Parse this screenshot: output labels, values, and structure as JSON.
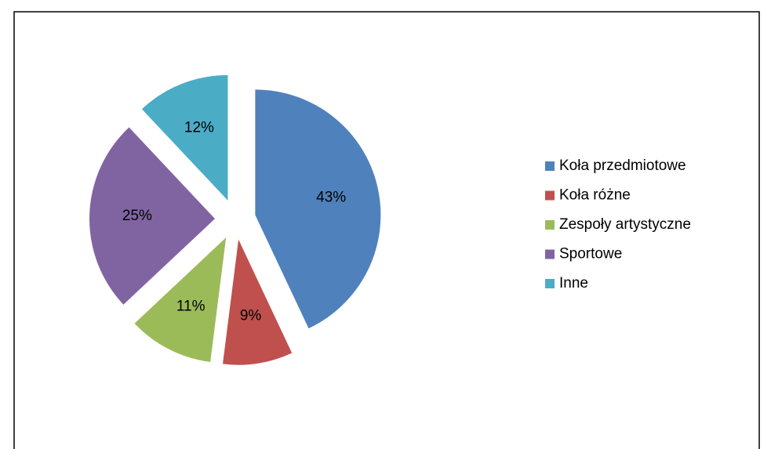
{
  "chart_data": {
    "type": "pie",
    "categories": [
      "Koła przedmiotowe",
      "Koła różne",
      "Zespoły artystyczne",
      "Sportowe",
      "Inne"
    ],
    "values": [
      43,
      9,
      11,
      25,
      12
    ],
    "value_labels": [
      "43%",
      "9%",
      "11%",
      "25%",
      "12%"
    ],
    "colors": [
      "#4f81bd",
      "#c0504d",
      "#9bbb59",
      "#8064a2",
      "#4bacc6"
    ],
    "legend": "right"
  }
}
